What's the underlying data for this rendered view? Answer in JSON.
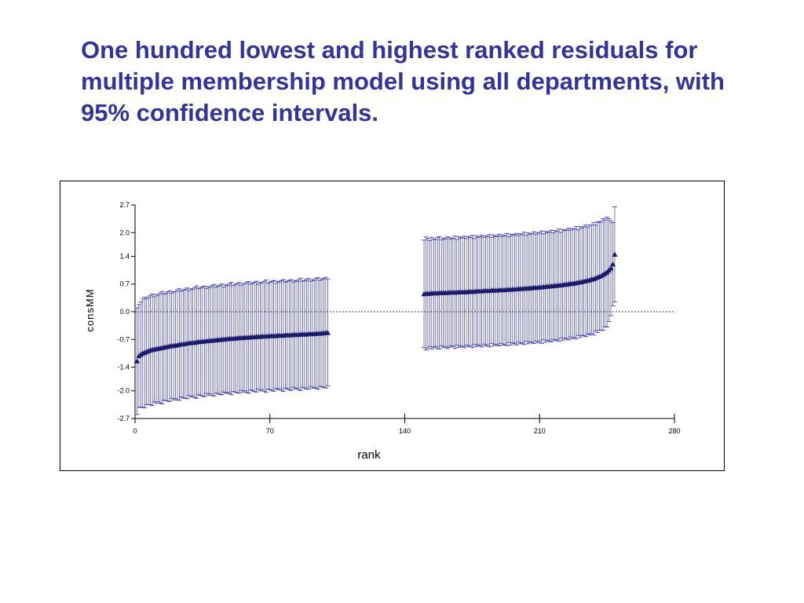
{
  "slide": {
    "title": "One hundred lowest and highest ranked residuals for multiple membership model using all departments, with 95% confidence intervals."
  },
  "chart_data": {
    "type": "scatter",
    "title": "",
    "xlabel": "rank",
    "ylabel": "consMM",
    "xlim": [
      0,
      280
    ],
    "ylim": [
      -2.7,
      2.7
    ],
    "xticks": [
      0,
      70,
      140,
      210,
      280
    ],
    "xtick_labels": [
      "0",
      "70",
      "140",
      "210",
      "280"
    ],
    "yticks": [
      2.7,
      2.0,
      1.4,
      0.7,
      0.0,
      -0.7,
      -1.4,
      -2.0,
      -2.7
    ],
    "ytick_labels": [
      "2.7",
      "2.0",
      "1.4",
      "0.7",
      "0.0",
      "-0.7",
      "-1.4",
      "-2.0",
      "-2.7"
    ],
    "reference_line": 0.0,
    "colors": {
      "marker": "#1a1a6e",
      "errorbar": "#3a3aa8",
      "reference": "#000000"
    },
    "series": [
      {
        "x": [
          1,
          2,
          3,
          4,
          5,
          6,
          7,
          8,
          9,
          10,
          11,
          12,
          13,
          14,
          15,
          16,
          17,
          18,
          19,
          20,
          21,
          22,
          23,
          24,
          25,
          26,
          27,
          28,
          29,
          30,
          31,
          32,
          33,
          34,
          35,
          36,
          37,
          38,
          39,
          40,
          41,
          42,
          43,
          44,
          45,
          46,
          47,
          48,
          49,
          50,
          51,
          52,
          53,
          54,
          55,
          56,
          57,
          58,
          59,
          60,
          61,
          62,
          63,
          64,
          65,
          66,
          67,
          68,
          69,
          70,
          71,
          72,
          73,
          74,
          75,
          76,
          77,
          78,
          79,
          80,
          81,
          82,
          83,
          84,
          85,
          86,
          87,
          88,
          89,
          90,
          91,
          92,
          93,
          94,
          95,
          96,
          97,
          98,
          99,
          100
        ],
        "y": [
          -1.25,
          -1.12,
          -1.08,
          -1.05,
          -1.03,
          -1.01,
          -0.99,
          -0.97,
          -0.96,
          -0.95,
          -0.94,
          -0.93,
          -0.92,
          -0.91,
          -0.9,
          -0.89,
          -0.88,
          -0.87,
          -0.86,
          -0.86,
          -0.85,
          -0.84,
          -0.83,
          -0.82,
          -0.82,
          -0.81,
          -0.8,
          -0.79,
          -0.79,
          -0.78,
          -0.78,
          -0.77,
          -0.76,
          -0.76,
          -0.75,
          -0.75,
          -0.74,
          -0.74,
          -0.73,
          -0.73,
          -0.72,
          -0.72,
          -0.71,
          -0.71,
          -0.7,
          -0.7,
          -0.69,
          -0.69,
          -0.68,
          -0.68,
          -0.68,
          -0.67,
          -0.67,
          -0.66,
          -0.66,
          -0.66,
          -0.65,
          -0.65,
          -0.65,
          -0.64,
          -0.64,
          -0.64,
          -0.63,
          -0.63,
          -0.63,
          -0.62,
          -0.62,
          -0.62,
          -0.62,
          -0.61,
          -0.61,
          -0.61,
          -0.61,
          -0.6,
          -0.6,
          -0.6,
          -0.6,
          -0.59,
          -0.59,
          -0.59,
          -0.59,
          -0.58,
          -0.58,
          -0.58,
          -0.58,
          -0.57,
          -0.57,
          -0.57,
          -0.57,
          -0.56,
          -0.56,
          -0.56,
          -0.56,
          -0.55,
          -0.55,
          -0.55,
          -0.54,
          -0.54,
          -0.53,
          -0.53
        ],
        "half_ci": [
          1.35,
          1.3,
          1.33,
          1.37,
          1.4,
          1.34,
          1.36,
          1.38,
          1.41,
          1.33,
          1.37,
          1.35,
          1.39,
          1.42,
          1.34,
          1.36,
          1.38,
          1.4,
          1.33,
          1.37,
          1.35,
          1.39,
          1.41,
          1.34,
          1.36,
          1.38,
          1.4,
          1.33,
          1.37,
          1.35,
          1.39,
          1.42,
          1.34,
          1.36,
          1.38,
          1.4,
          1.33,
          1.37,
          1.35,
          1.39,
          1.41,
          1.34,
          1.36,
          1.38,
          1.4,
          1.33,
          1.37,
          1.35,
          1.39,
          1.42,
          1.34,
          1.36,
          1.38,
          1.4,
          1.33,
          1.37,
          1.35,
          1.39,
          1.41,
          1.34,
          1.36,
          1.38,
          1.4,
          1.33,
          1.37,
          1.35,
          1.39,
          1.42,
          1.34,
          1.36,
          1.38,
          1.4,
          1.33,
          1.37,
          1.35,
          1.39,
          1.41,
          1.34,
          1.36,
          1.38,
          1.4,
          1.33,
          1.37,
          1.35,
          1.39,
          1.42,
          1.34,
          1.36,
          1.38,
          1.4,
          1.33,
          1.37,
          1.35,
          1.39,
          1.41,
          1.34,
          1.36,
          1.38,
          1.4,
          1.35
        ]
      },
      {
        "x": [
          150,
          151,
          152,
          153,
          154,
          155,
          156,
          157,
          158,
          159,
          160,
          161,
          162,
          163,
          164,
          165,
          166,
          167,
          168,
          169,
          170,
          171,
          172,
          173,
          174,
          175,
          176,
          177,
          178,
          179,
          180,
          181,
          182,
          183,
          184,
          185,
          186,
          187,
          188,
          189,
          190,
          191,
          192,
          193,
          194,
          195,
          196,
          197,
          198,
          199,
          200,
          201,
          202,
          203,
          204,
          205,
          206,
          207,
          208,
          209,
          210,
          211,
          212,
          213,
          214,
          215,
          216,
          217,
          218,
          219,
          220,
          221,
          222,
          223,
          224,
          225,
          226,
          227,
          228,
          229,
          230,
          231,
          232,
          233,
          234,
          235,
          236,
          237,
          238,
          239,
          240,
          241,
          242,
          243,
          244,
          245,
          246,
          247,
          248,
          249
        ],
        "y": [
          0.45,
          0.46,
          0.46,
          0.46,
          0.47,
          0.47,
          0.47,
          0.47,
          0.48,
          0.48,
          0.48,
          0.48,
          0.48,
          0.49,
          0.49,
          0.49,
          0.49,
          0.49,
          0.5,
          0.5,
          0.5,
          0.5,
          0.5,
          0.51,
          0.51,
          0.51,
          0.51,
          0.52,
          0.52,
          0.52,
          0.52,
          0.53,
          0.53,
          0.53,
          0.53,
          0.54,
          0.54,
          0.54,
          0.54,
          0.55,
          0.55,
          0.55,
          0.55,
          0.56,
          0.56,
          0.56,
          0.57,
          0.57,
          0.57,
          0.58,
          0.58,
          0.58,
          0.59,
          0.59,
          0.59,
          0.6,
          0.6,
          0.61,
          0.61,
          0.61,
          0.62,
          0.62,
          0.63,
          0.63,
          0.64,
          0.64,
          0.65,
          0.65,
          0.66,
          0.66,
          0.67,
          0.67,
          0.68,
          0.69,
          0.69,
          0.7,
          0.71,
          0.71,
          0.72,
          0.73,
          0.74,
          0.75,
          0.76,
          0.77,
          0.78,
          0.79,
          0.8,
          0.82,
          0.83,
          0.85,
          0.87,
          0.89,
          0.91,
          0.94,
          0.97,
          1.0,
          1.05,
          1.1,
          1.2,
          1.45
        ],
        "half_ci": [
          1.36,
          1.43,
          1.39,
          1.34,
          1.41,
          1.37,
          1.35,
          1.4,
          1.42,
          1.34,
          1.38,
          1.36,
          1.41,
          1.39,
          1.35,
          1.37,
          1.42,
          1.34,
          1.4,
          1.36,
          1.38,
          1.41,
          1.35,
          1.39,
          1.37,
          1.42,
          1.34,
          1.4,
          1.36,
          1.38,
          1.41,
          1.35,
          1.39,
          1.37,
          1.42,
          1.34,
          1.4,
          1.36,
          1.38,
          1.41,
          1.35,
          1.39,
          1.37,
          1.42,
          1.34,
          1.4,
          1.36,
          1.38,
          1.41,
          1.35,
          1.39,
          1.37,
          1.42,
          1.34,
          1.4,
          1.36,
          1.38,
          1.41,
          1.35,
          1.39,
          1.37,
          1.42,
          1.34,
          1.4,
          1.36,
          1.38,
          1.41,
          1.35,
          1.39,
          1.37,
          1.42,
          1.34,
          1.4,
          1.36,
          1.38,
          1.41,
          1.35,
          1.39,
          1.37,
          1.42,
          1.34,
          1.4,
          1.36,
          1.38,
          1.41,
          1.35,
          1.39,
          1.37,
          1.42,
          1.34,
          1.4,
          1.36,
          1.38,
          1.41,
          1.35,
          1.39,
          1.3,
          1.2,
          1.05,
          1.2
        ]
      }
    ]
  }
}
